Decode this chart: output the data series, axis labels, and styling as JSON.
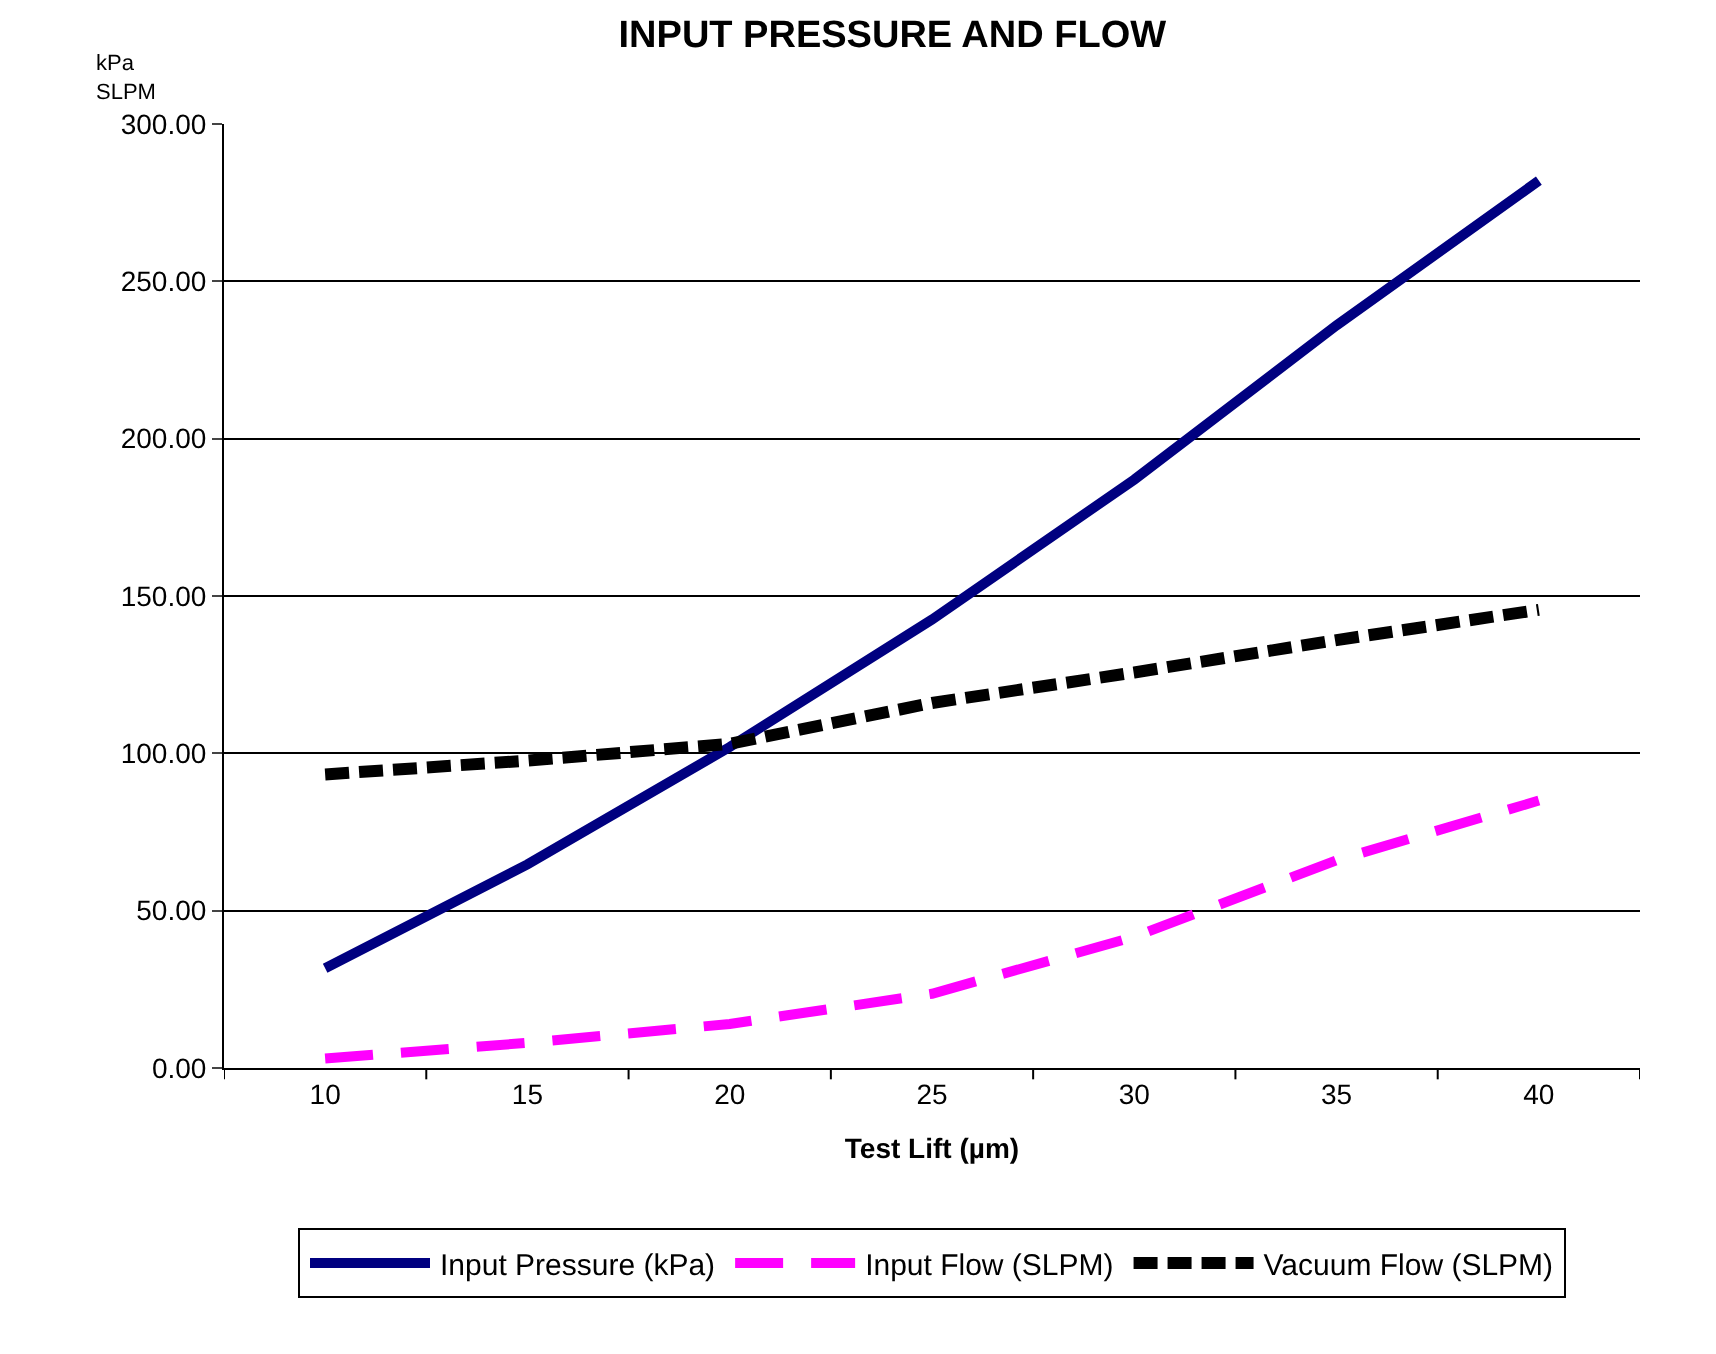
{
  "chart_data": {
    "type": "line",
    "title": "INPUT PRESSURE AND FLOW",
    "xlabel": "Test Lift (µm)",
    "ylabel": "kPa\nSLPM",
    "categories": [
      "10",
      "15",
      "20",
      "25",
      "30",
      "35",
      "40"
    ],
    "series": [
      {
        "name": "Input Pressure (kPa)",
        "color": "#000080",
        "line_style": "solid",
        "values": [
          31.7,
          64.7,
          102,
          142.5,
          187,
          236,
          282
        ]
      },
      {
        "name": "Input Flow (SLPM)",
        "color": "#ff00ff",
        "line_style": "dashed",
        "values": [
          3,
          8,
          14,
          23.6,
          41.7,
          66,
          85
        ]
      },
      {
        "name": "Vacuum Flow (SLPM)",
        "color": "#000000",
        "line_style": "dotted",
        "values": [
          93.3,
          97.7,
          103,
          116,
          125.7,
          136,
          145.6
        ]
      }
    ],
    "ylim": [
      0,
      300
    ],
    "yticks": [
      {
        "value": 0,
        "label": "0.00"
      },
      {
        "value": 50,
        "label": "50.00"
      },
      {
        "value": 100,
        "label": "100.00"
      },
      {
        "value": 150,
        "label": "150.00"
      },
      {
        "value": 200,
        "label": "200.00"
      },
      {
        "value": 250,
        "label": "250.00"
      },
      {
        "value": 300,
        "label": "300.00"
      }
    ],
    "grid": "y",
    "legend": "bottom",
    "marker": "none"
  }
}
